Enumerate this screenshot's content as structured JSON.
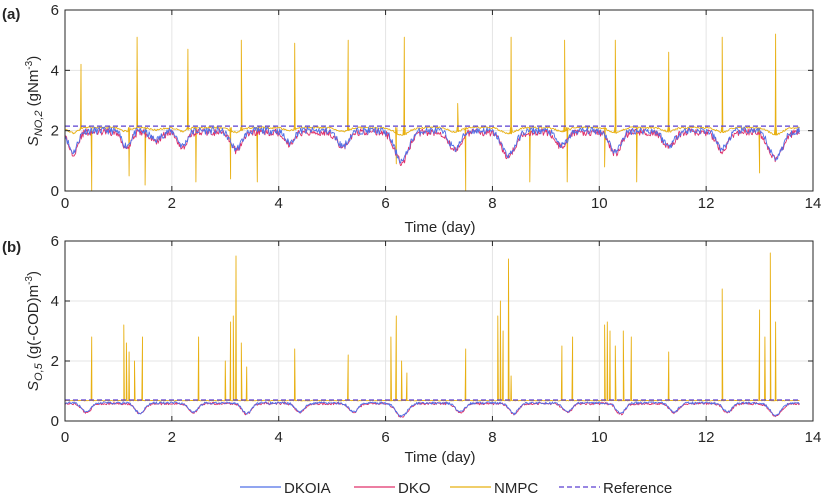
{
  "colors": {
    "dkoia": "#4f6fe8",
    "dko": "#e0306a",
    "nmpc": "#e8b012",
    "reference": "#5a3fd0",
    "axis": "#262626",
    "grid": "#e4e4e4"
  },
  "legend": {
    "items": [
      {
        "label": "DKOIA",
        "key": "dkoia",
        "dashed": false
      },
      {
        "label": "DKO",
        "key": "dko",
        "dashed": false
      },
      {
        "label": "NMPC",
        "key": "nmpc",
        "dashed": false
      },
      {
        "label": "Reference",
        "key": "reference",
        "dashed": true
      }
    ]
  },
  "chart_data": [
    {
      "type": "line",
      "panel_label": "(a)",
      "xlabel": "Time (day)",
      "ylabel_main": "S",
      "ylabel_sub": "NO,2",
      "ylabel_unit": " (gNm",
      "ylabel_sup": "-3",
      "ylabel_close": ")",
      "xlim": [
        0,
        14
      ],
      "ylim": [
        0,
        6
      ],
      "xticks": [
        0,
        2,
        4,
        6,
        8,
        10,
        12,
        14
      ],
      "yticks": [
        0,
        2,
        4,
        6
      ],
      "xtick_labels": [
        "0",
        "2",
        "4",
        "6",
        "8",
        "10",
        "12",
        "14"
      ],
      "ytick_labels": [
        "0",
        "2",
        "4",
        "6"
      ],
      "reference": 2.15,
      "baseline": 2.0,
      "series_x_end": 13.75,
      "dips": [
        {
          "x": 0.15,
          "depth": 0.7,
          "width": 0.12
        },
        {
          "x": 1.15,
          "depth": 0.5,
          "width": 0.12
        },
        {
          "x": 1.7,
          "depth": 0.3,
          "width": 0.15
        },
        {
          "x": 2.2,
          "depth": 0.5,
          "width": 0.12
        },
        {
          "x": 3.2,
          "depth": 0.6,
          "width": 0.15
        },
        {
          "x": 4.2,
          "depth": 0.4,
          "width": 0.12
        },
        {
          "x": 5.2,
          "depth": 0.5,
          "width": 0.15
        },
        {
          "x": 6.3,
          "depth": 1.0,
          "width": 0.18
        },
        {
          "x": 7.3,
          "depth": 0.6,
          "width": 0.15
        },
        {
          "x": 8.3,
          "depth": 0.8,
          "width": 0.18
        },
        {
          "x": 9.3,
          "depth": 0.5,
          "width": 0.15
        },
        {
          "x": 10.3,
          "depth": 0.7,
          "width": 0.15
        },
        {
          "x": 11.3,
          "depth": 0.5,
          "width": 0.15
        },
        {
          "x": 12.3,
          "depth": 0.6,
          "width": 0.15
        },
        {
          "x": 13.3,
          "depth": 0.9,
          "width": 0.18
        }
      ],
      "nmpc_spikes": [
        {
          "x": 0.3,
          "peak": 4.2
        },
        {
          "x": 1.35,
          "peak": 5.1
        },
        {
          "x": 2.3,
          "peak": 4.7
        },
        {
          "x": 3.3,
          "peak": 5.0
        },
        {
          "x": 4.3,
          "peak": 4.9
        },
        {
          "x": 5.3,
          "peak": 5.0
        },
        {
          "x": 6.35,
          "peak": 5.1
        },
        {
          "x": 7.35,
          "peak": 2.9
        },
        {
          "x": 8.35,
          "peak": 5.1
        },
        {
          "x": 9.35,
          "peak": 5.0
        },
        {
          "x": 10.3,
          "peak": 5.0
        },
        {
          "x": 11.3,
          "peak": 4.6
        },
        {
          "x": 12.3,
          "peak": 5.1
        },
        {
          "x": 13.3,
          "peak": 5.2
        }
      ],
      "nmpc_drops": [
        {
          "x": 0.5,
          "low": 0.0
        },
        {
          "x": 1.2,
          "low": 0.5
        },
        {
          "x": 1.5,
          "low": 0.2
        },
        {
          "x": 2.45,
          "low": 0.3
        },
        {
          "x": 3.1,
          "low": 0.4
        },
        {
          "x": 3.6,
          "low": 0.3
        },
        {
          "x": 6.2,
          "low": 0.9
        },
        {
          "x": 7.5,
          "low": 0.0
        },
        {
          "x": 8.7,
          "low": 0.3
        },
        {
          "x": 9.4,
          "low": 0.3
        },
        {
          "x": 10.1,
          "low": 0.8
        },
        {
          "x": 10.7,
          "low": 0.3
        },
        {
          "x": 13.0,
          "low": 0.6
        }
      ]
    },
    {
      "type": "line",
      "panel_label": "(b)",
      "xlabel": "Time (day)",
      "ylabel_main": "S",
      "ylabel_sub": "O,5",
      "ylabel_unit": " (g(-COD)m",
      "ylabel_sup": "-3",
      "ylabel_close": ")",
      "xlim": [
        0,
        14
      ],
      "ylim": [
        0,
        6
      ],
      "xticks": [
        0,
        2,
        4,
        6,
        8,
        10,
        12,
        14
      ],
      "yticks": [
        0,
        2,
        4,
        6
      ],
      "xtick_labels": [
        "0",
        "2",
        "4",
        "6",
        "8",
        "10",
        "12",
        "14"
      ],
      "ytick_labels": [
        "0",
        "2",
        "4",
        "6"
      ],
      "reference": 0.7,
      "baseline": 0.6,
      "series_x_end": 13.75,
      "dips": [
        {
          "x": 0.4,
          "depth": 0.3,
          "width": 0.12
        },
        {
          "x": 1.4,
          "depth": 0.35,
          "width": 0.12
        },
        {
          "x": 2.4,
          "depth": 0.3,
          "width": 0.12
        },
        {
          "x": 3.4,
          "depth": 0.35,
          "width": 0.12
        },
        {
          "x": 4.4,
          "depth": 0.3,
          "width": 0.12
        },
        {
          "x": 5.4,
          "depth": 0.3,
          "width": 0.12
        },
        {
          "x": 6.3,
          "depth": 0.45,
          "width": 0.15
        },
        {
          "x": 7.4,
          "depth": 0.3,
          "width": 0.12
        },
        {
          "x": 8.4,
          "depth": 0.35,
          "width": 0.12
        },
        {
          "x": 9.4,
          "depth": 0.3,
          "width": 0.12
        },
        {
          "x": 10.4,
          "depth": 0.35,
          "width": 0.12
        },
        {
          "x": 11.4,
          "depth": 0.3,
          "width": 0.12
        },
        {
          "x": 12.4,
          "depth": 0.3,
          "width": 0.12
        },
        {
          "x": 13.3,
          "depth": 0.4,
          "width": 0.15
        }
      ],
      "nmpc_spikes": [
        {
          "x": 0.5,
          "peak": 2.8
        },
        {
          "x": 1.1,
          "peak": 3.2
        },
        {
          "x": 1.15,
          "peak": 2.6
        },
        {
          "x": 1.2,
          "peak": 2.3
        },
        {
          "x": 1.3,
          "peak": 2.0
        },
        {
          "x": 1.45,
          "peak": 2.8
        },
        {
          "x": 2.5,
          "peak": 2.8
        },
        {
          "x": 3.0,
          "peak": 2.0
        },
        {
          "x": 3.1,
          "peak": 3.3
        },
        {
          "x": 3.15,
          "peak": 3.5
        },
        {
          "x": 3.2,
          "peak": 5.5
        },
        {
          "x": 3.3,
          "peak": 2.6
        },
        {
          "x": 3.4,
          "peak": 1.8
        },
        {
          "x": 4.3,
          "peak": 2.4
        },
        {
          "x": 5.3,
          "peak": 2.2
        },
        {
          "x": 6.1,
          "peak": 2.8
        },
        {
          "x": 6.2,
          "peak": 3.5
        },
        {
          "x": 6.3,
          "peak": 2.0
        },
        {
          "x": 6.4,
          "peak": 1.6
        },
        {
          "x": 7.5,
          "peak": 2.4
        },
        {
          "x": 8.1,
          "peak": 3.5
        },
        {
          "x": 8.15,
          "peak": 4.0
        },
        {
          "x": 8.2,
          "peak": 3.0
        },
        {
          "x": 8.3,
          "peak": 5.4
        },
        {
          "x": 8.35,
          "peak": 1.5
        },
        {
          "x": 9.3,
          "peak": 2.5
        },
        {
          "x": 9.5,
          "peak": 2.8
        },
        {
          "x": 10.1,
          "peak": 3.2
        },
        {
          "x": 10.15,
          "peak": 3.3
        },
        {
          "x": 10.2,
          "peak": 3.0
        },
        {
          "x": 10.3,
          "peak": 2.5
        },
        {
          "x": 10.45,
          "peak": 3.0
        },
        {
          "x": 10.6,
          "peak": 2.8
        },
        {
          "x": 11.3,
          "peak": 2.3
        },
        {
          "x": 12.3,
          "peak": 4.4
        },
        {
          "x": 13.0,
          "peak": 3.7
        },
        {
          "x": 13.1,
          "peak": 2.8
        },
        {
          "x": 13.2,
          "peak": 5.6
        },
        {
          "x": 13.3,
          "peak": 3.3
        }
      ],
      "nmpc_drops": []
    }
  ]
}
